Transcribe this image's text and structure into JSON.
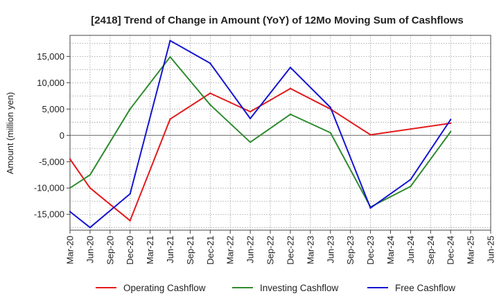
{
  "chart_data": {
    "type": "line",
    "title": "[2418]  Trend of Change in Amount (YoY) of 12Mo Moving Sum of Cashflows",
    "xlabel": "",
    "ylabel": "Amount (million yen)",
    "ylim": [
      -18000,
      19000
    ],
    "yticks": [
      -15000,
      -10000,
      -5000,
      0,
      5000,
      10000,
      15000
    ],
    "ytick_labels": [
      "-15,000",
      "-10,000",
      "-5,000",
      "0",
      "5,000",
      "10,000",
      "15,000"
    ],
    "categories": [
      "Mar-20",
      "Jun-20",
      "Sep-20",
      "Dec-20",
      "Mar-21",
      "Jun-21",
      "Sep-21",
      "Dec-21",
      "Mar-22",
      "Jun-22",
      "Sep-22",
      "Dec-22",
      "Mar-23",
      "Jun-23",
      "Sep-23",
      "Dec-23",
      "Mar-24",
      "Jun-24",
      "Sep-24",
      "Dec-24",
      "Mar-25",
      "Jun-25"
    ],
    "grid": true,
    "legend_position": "bottom",
    "series": [
      {
        "name": "Operating Cashflow",
        "color": "#e41a1c",
        "values": [
          -4500,
          -10000,
          null,
          -16200,
          null,
          3100,
          null,
          8000,
          null,
          4500,
          null,
          8900,
          null,
          5000,
          null,
          100,
          null,
          null,
          null,
          2300,
          null,
          null
        ]
      },
      {
        "name": "Investing Cashflow",
        "color": "#2e8b2e",
        "values": [
          -10000,
          -7500,
          null,
          5000,
          null,
          14900,
          null,
          5800,
          null,
          -1300,
          null,
          4000,
          null,
          500,
          null,
          -13600,
          null,
          -9700,
          null,
          700,
          null,
          null
        ]
      },
      {
        "name": "Free Cashflow",
        "color": "#1414d2",
        "values": [
          -14500,
          -17500,
          null,
          -11100,
          null,
          18000,
          null,
          13700,
          null,
          3200,
          null,
          12900,
          null,
          5300,
          null,
          -13800,
          null,
          -8400,
          null,
          3000,
          null,
          null
        ]
      }
    ]
  }
}
